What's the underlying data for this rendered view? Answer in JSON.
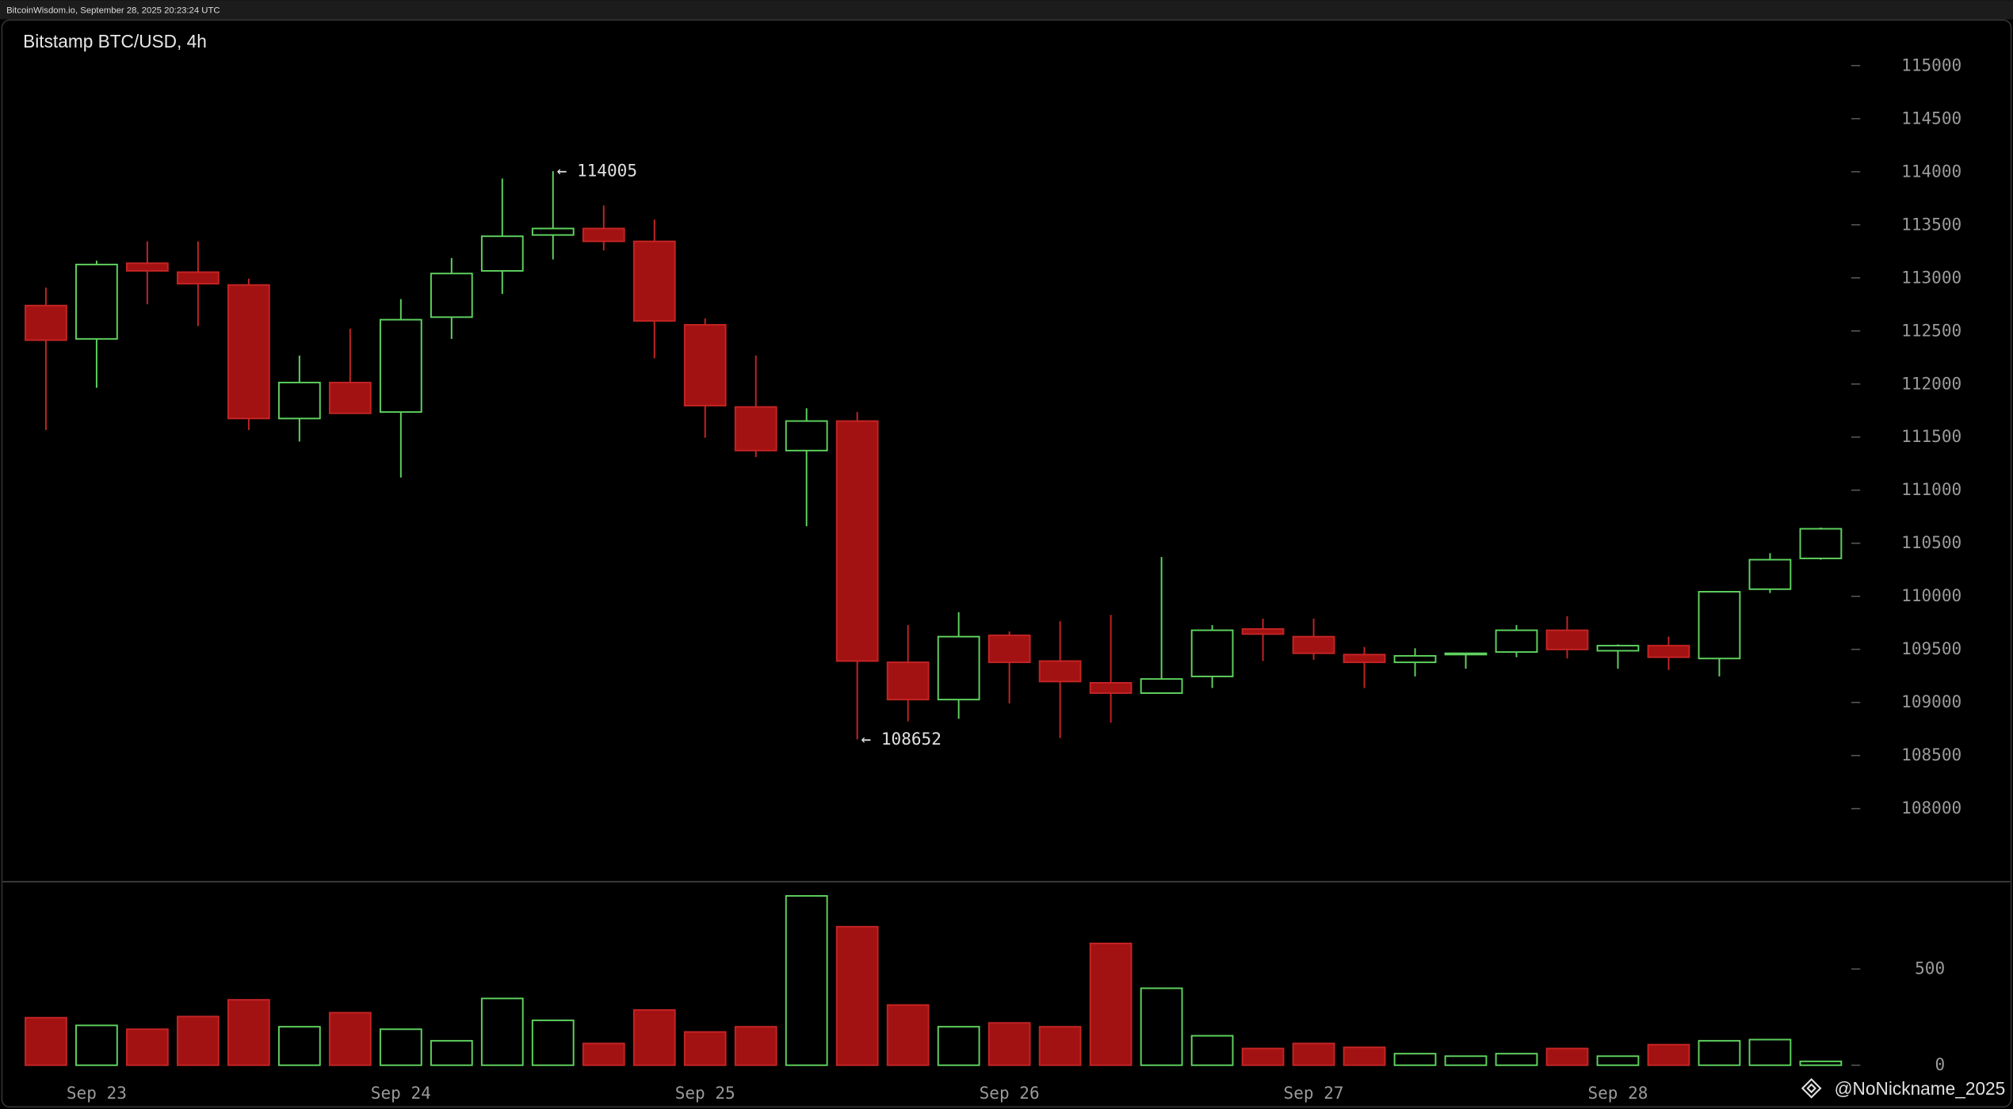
{
  "header": "BitcoinWisdom.io, September 28, 2025 20:23:24 UTC",
  "watermark": "@NoNickname_2025",
  "chart_data": [
    {
      "type": "candlestick",
      "title": "Bitstamp BTC/USD, 4h",
      "categories": [
        null,
        "Sep 23",
        null,
        null,
        null,
        null,
        null,
        "Sep 24",
        null,
        null,
        null,
        null,
        null,
        "Sep 25",
        null,
        null,
        null,
        null,
        null,
        "Sep 26",
        null,
        null,
        null,
        null,
        null,
        "Sep 27",
        null,
        null,
        null,
        null,
        null,
        "Sep 28",
        null,
        null,
        null,
        null
      ],
      "open": [
        112739,
        112425,
        113138,
        113054,
        112933,
        111675,
        112014,
        111736,
        112630,
        113066,
        113404,
        113465,
        113344,
        112558,
        111784,
        111373,
        111651,
        109378,
        109027,
        109632,
        109390,
        109185,
        109088,
        109245,
        109692,
        109620,
        109451,
        109378,
        109451,
        109475,
        109680,
        109487,
        109535,
        109414,
        110067,
        110357
      ],
      "high": [
        112908,
        113162,
        113344,
        113344,
        112993,
        112268,
        112522,
        112800,
        113187,
        113936,
        114005,
        113682,
        113549,
        112618,
        112268,
        111772,
        111736,
        109729,
        109850,
        109668,
        109765,
        109825,
        110370,
        109729,
        109789,
        109789,
        109523,
        109511,
        109463,
        109729,
        109813,
        109547,
        109620,
        110043,
        110406,
        110648
      ],
      "low": [
        111566,
        111965,
        112751,
        112546,
        111566,
        111458,
        111724,
        111119,
        112425,
        112848,
        113174,
        113259,
        112243,
        111494,
        111312,
        110660,
        108652,
        108822,
        108846,
        108991,
        108665,
        108810,
        109088,
        109136,
        109390,
        109402,
        109136,
        109245,
        109318,
        109426,
        109414,
        109318,
        109306,
        109245,
        110031,
        110345
      ],
      "close": [
        112413,
        113126,
        113066,
        112945,
        111675,
        112014,
        111724,
        112606,
        113041,
        113392,
        113465,
        113344,
        112594,
        111796,
        111373,
        111651,
        109390,
        109027,
        109620,
        109378,
        109197,
        109088,
        109221,
        109680,
        109644,
        109463,
        109378,
        109439,
        109463,
        109680,
        109499,
        109535,
        109426,
        110043,
        110345,
        110636
      ],
      "up_color": "#5fd35f",
      "down_color": "#a31212",
      "ylim": [
        107311,
        115435
      ],
      "yticks": [
        108000,
        108500,
        109000,
        109500,
        110000,
        110500,
        111000,
        111500,
        112000,
        112500,
        113000,
        113500,
        114000,
        114500,
        115000
      ],
      "annotations": [
        {
          "value": 114005,
          "label": "← 114005"
        },
        {
          "value": 108652,
          "label": "← 108652"
        }
      ]
    },
    {
      "type": "bar",
      "values": [
        247,
        207,
        187,
        253,
        340,
        200,
        273,
        187,
        127,
        347,
        233,
        113,
        287,
        173,
        200,
        880,
        720,
        313,
        200,
        220,
        200,
        633,
        400,
        153,
        87,
        113,
        93,
        60,
        47,
        60,
        87,
        47,
        107,
        127,
        133,
        20
      ],
      "ylim": [
        0,
        947
      ],
      "yticks": [
        0,
        500
      ]
    }
  ]
}
